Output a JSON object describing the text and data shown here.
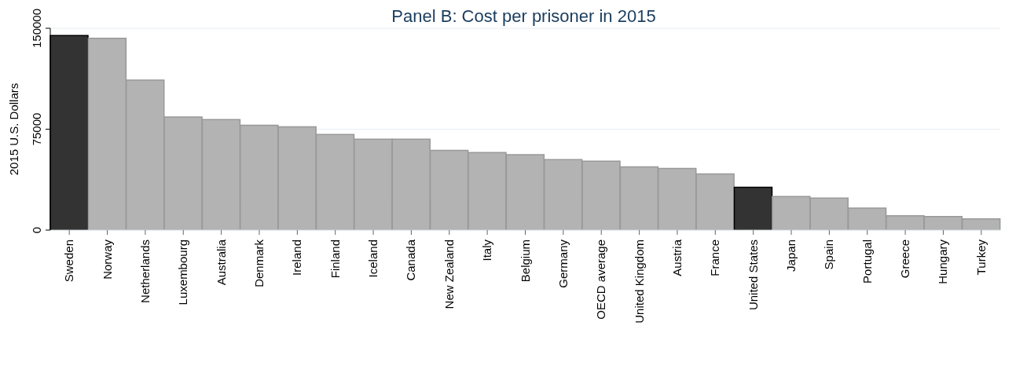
{
  "chart_data": {
    "type": "bar",
    "title": "Panel B: Cost per prisoner in 2015",
    "ylabel": "2015 U.S. Dollars",
    "categories": [
      "Sweden",
      "Norway",
      "Netherlands",
      "Luxembourg",
      "Australia",
      "Denmark",
      "Ireland",
      "Finland",
      "Iceland",
      "Canada",
      "New Zealand",
      "Italy",
      "Belgium",
      "Germany",
      "OECD average",
      "United Kingdom",
      "Austria",
      "France",
      "United States",
      "Japan",
      "Spain",
      "Portugal",
      "Greece",
      "Hungary",
      "Turkey"
    ],
    "values": [
      144600,
      142600,
      111500,
      84100,
      82100,
      77900,
      76700,
      71000,
      67600,
      67600,
      59300,
      57600,
      56100,
      52400,
      51200,
      47000,
      45800,
      41800,
      31800,
      24900,
      23800,
      16300,
      10600,
      10000,
      8300
    ],
    "colors": [
      "#333333",
      "#b3b3b3",
      "#b3b3b3",
      "#b3b3b3",
      "#b3b3b3",
      "#b3b3b3",
      "#b3b3b3",
      "#b3b3b3",
      "#b3b3b3",
      "#b3b3b3",
      "#b3b3b3",
      "#b3b3b3",
      "#b3b3b3",
      "#b3b3b3",
      "#b3b3b3",
      "#b3b3b3",
      "#b3b3b3",
      "#b3b3b3",
      "#333333",
      "#b3b3b3",
      "#b3b3b3",
      "#b3b3b3",
      "#b3b3b3",
      "#b3b3b3",
      "#b3b3b3"
    ],
    "ylim": [
      0,
      150000
    ],
    "yticks": [
      0,
      75000,
      150000
    ],
    "grid": "y"
  }
}
